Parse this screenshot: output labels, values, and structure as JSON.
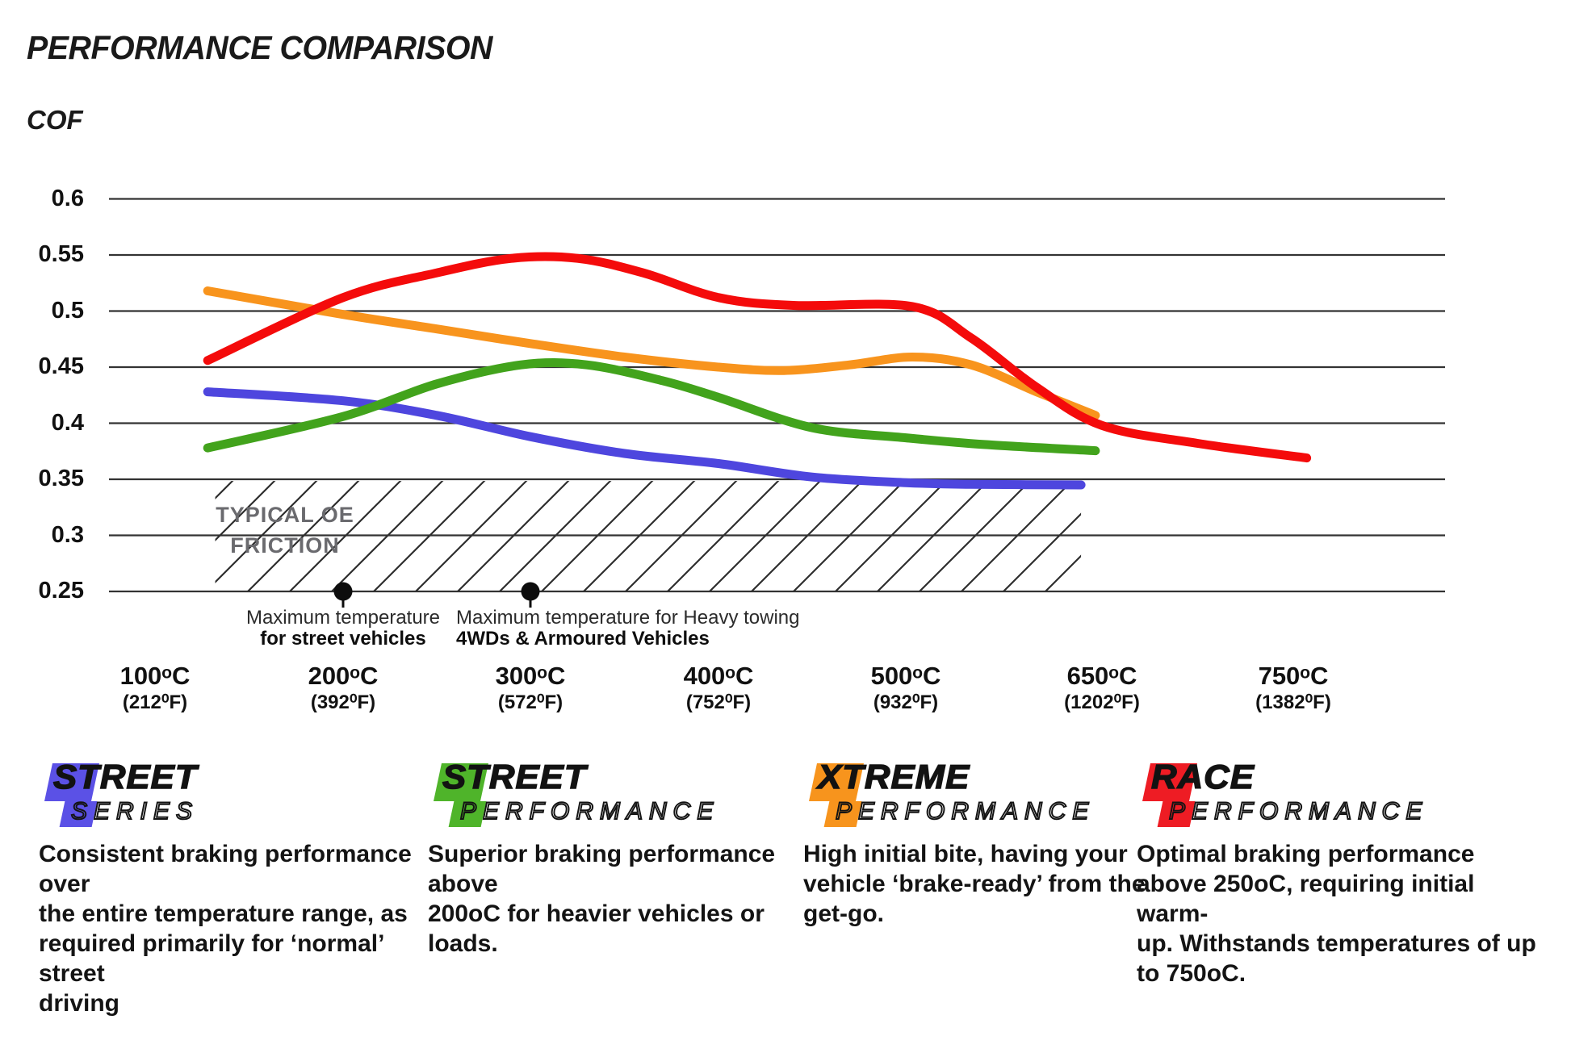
{
  "title": "PERFORMANCE COMPARISON",
  "chart_data": {
    "type": "line",
    "title": "PERFORMANCE COMPARISON",
    "ylabel": "COF",
    "xlabel": "",
    "grid": "horizontal",
    "ylim": [
      0.25,
      0.6
    ],
    "y_ticks": [
      {
        "value": 0.6,
        "label": "0.6"
      },
      {
        "value": 0.55,
        "label": "0.55"
      },
      {
        "value": 0.5,
        "label": "0.5"
      },
      {
        "value": 0.45,
        "label": "0.45"
      },
      {
        "value": 0.4,
        "label": "0.4"
      },
      {
        "value": 0.35,
        "label": "0.35"
      },
      {
        "value": 0.3,
        "label": "0.3"
      },
      {
        "value": 0.25,
        "label": "0.25"
      }
    ],
    "x_ticks": [
      {
        "t": 100,
        "celsius": "100ᵒC",
        "fahrenheit": "(212⁰F)"
      },
      {
        "t": 200,
        "celsius": "200ᵒC",
        "fahrenheit": "(392⁰F)"
      },
      {
        "t": 300,
        "celsius": "300ᵒC",
        "fahrenheit": "(572⁰F)"
      },
      {
        "t": 400,
        "celsius": "400ᵒC",
        "fahrenheit": "(752⁰F)"
      },
      {
        "t": 500,
        "celsius": "500ᵒC",
        "fahrenheit": "(932⁰F)"
      },
      {
        "t": 650,
        "celsius": "650ᵒC",
        "fahrenheit": "(1202⁰F)"
      },
      {
        "t": 750,
        "celsius": "750ᵒC",
        "fahrenheit": "(1382⁰F)"
      }
    ],
    "series": [
      {
        "name": "Street Series",
        "color": "#4e46de",
        "points": [
          [
            128,
            0.428
          ],
          [
            200,
            0.42
          ],
          [
            250,
            0.407
          ],
          [
            300,
            0.388
          ],
          [
            350,
            0.373
          ],
          [
            400,
            0.364
          ],
          [
            450,
            0.352
          ],
          [
            500,
            0.347
          ],
          [
            550,
            0.3455
          ],
          [
            634,
            0.345
          ]
        ]
      },
      {
        "name": "Street Performance",
        "color": "#42a31c",
        "points": [
          [
            128,
            0.378
          ],
          [
            200,
            0.406
          ],
          [
            250,
            0.435
          ],
          [
            295,
            0.452
          ],
          [
            330,
            0.452
          ],
          [
            370,
            0.438
          ],
          [
            400,
            0.423
          ],
          [
            450,
            0.396
          ],
          [
            500,
            0.387
          ],
          [
            560,
            0.381
          ],
          [
            645,
            0.3755
          ]
        ]
      },
      {
        "name": "Xtreme Performance",
        "color": "#f8941d",
        "points": [
          [
            128,
            0.518
          ],
          [
            200,
            0.497
          ],
          [
            250,
            0.484
          ],
          [
            300,
            0.471
          ],
          [
            350,
            0.459
          ],
          [
            400,
            0.45
          ],
          [
            435,
            0.447
          ],
          [
            470,
            0.452
          ],
          [
            505,
            0.459
          ],
          [
            550,
            0.452
          ],
          [
            600,
            0.428
          ],
          [
            645,
            0.407
          ]
        ]
      },
      {
        "name": "Race Performance",
        "color": "#f40b0b",
        "points": [
          [
            128,
            0.456
          ],
          [
            200,
            0.512
          ],
          [
            250,
            0.534
          ],
          [
            290,
            0.547
          ],
          [
            325,
            0.547
          ],
          [
            360,
            0.534
          ],
          [
            400,
            0.512
          ],
          [
            440,
            0.505
          ],
          [
            505,
            0.504
          ],
          [
            550,
            0.476
          ],
          [
            600,
            0.432
          ],
          [
            650,
            0.398
          ],
          [
            700,
            0.382
          ],
          [
            757,
            0.369
          ]
        ]
      }
    ],
    "oe_band": {
      "label": "TYPICAL OE\nFRICTION",
      "t_start": 132,
      "t_end": 634,
      "cof_top": 0.3485,
      "cof_bottom": 0.25,
      "text_color": "#6a6a6e"
    },
    "annotations": [
      {
        "t": 200,
        "cof": 0.25,
        "align": "center",
        "line1": "Maximum temperature",
        "line2": "for street vehicles"
      },
      {
        "t": 300,
        "cof": 0.25,
        "align": "left",
        "line1": "Maximum temperature for Heavy towing",
        "line2": "4WDs & Armoured Vehicles"
      }
    ]
  },
  "legend": {
    "brands": [
      {
        "cap": "S",
        "rest": "TREET",
        "line2": "SERIES",
        "color": "#5b51e6",
        "desc": "Consistent braking performance over\nthe entire temperature range, as\nrequired primarily for ‘normal’ street\ndriving"
      },
      {
        "cap": "S",
        "rest": "TREET",
        "line2": "PERFORMANCE",
        "color": "#4fb42a",
        "desc": "Superior braking performance above\n200oC for heavier vehicles or loads."
      },
      {
        "cap": "X",
        "rest": "TREME",
        "line2": "PERFORMANCE",
        "color": "#f7941d",
        "desc": "High initial bite, having your\nvehicle ‘brake-ready’ from the\nget-go."
      },
      {
        "cap": "R",
        "rest": "ACE",
        "line2": "PERFORMANCE",
        "color": "#ee1c24",
        "desc": "Optimal braking performance\nabove 250oC, requiring initial warm-\nup. Withstands temperatures of up\nto 750oC."
      }
    ]
  }
}
